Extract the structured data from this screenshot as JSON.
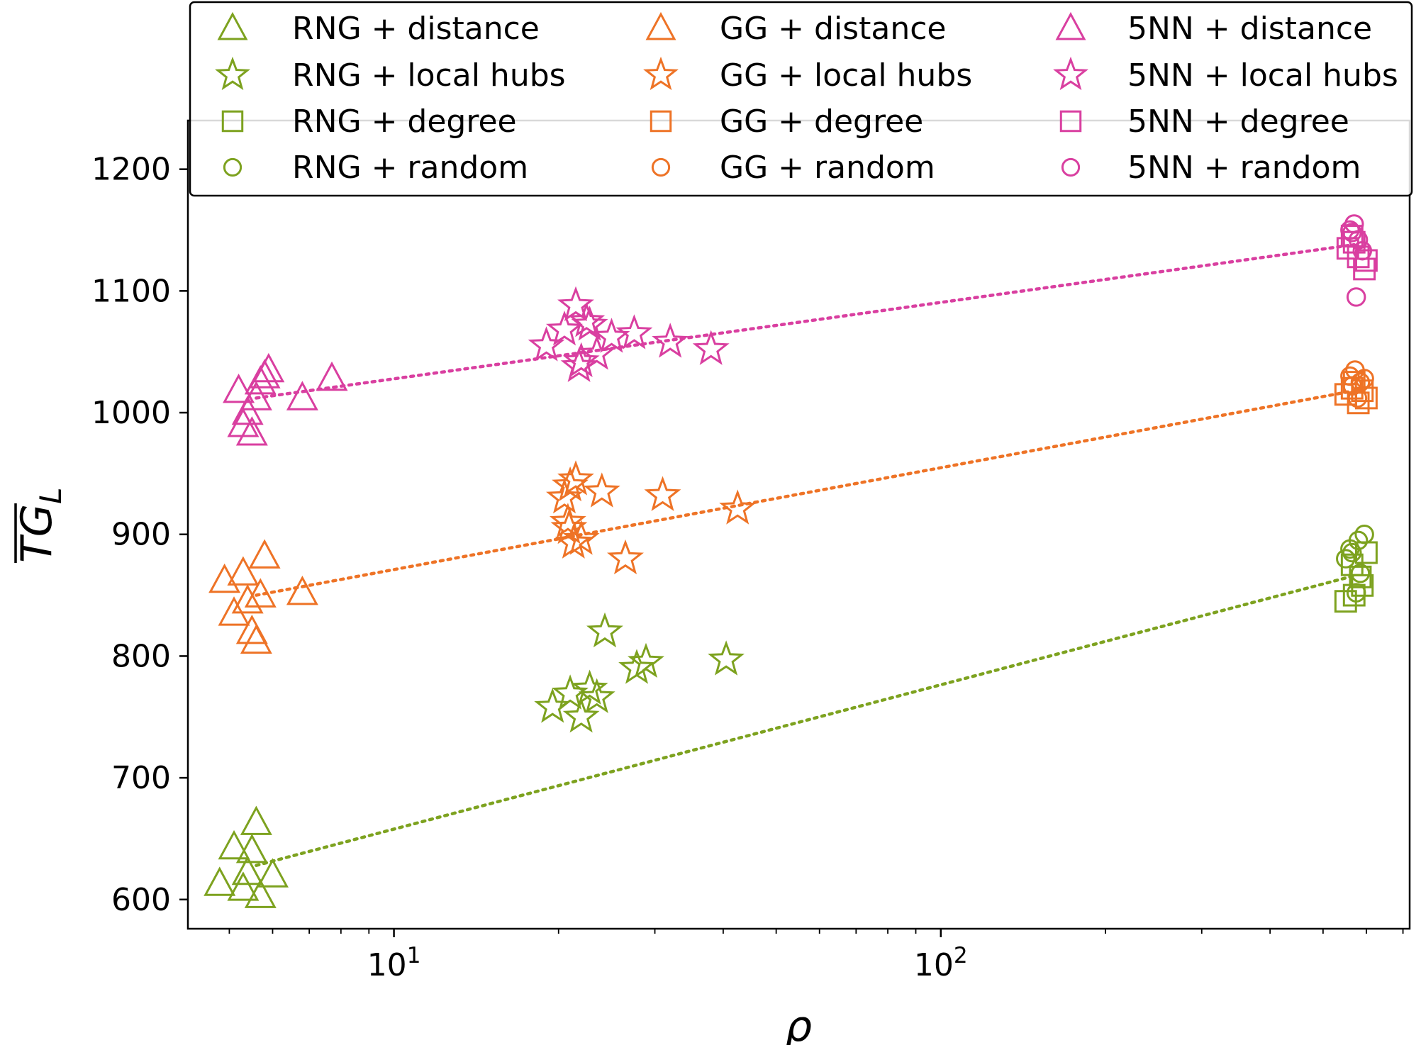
{
  "chart_data": {
    "type": "scatter",
    "title": "",
    "xlabel": "ρ",
    "ylabel_main": "TG",
    "ylabel_sub": "L",
    "xscale": "log",
    "xlim": [
      4.2,
      720
    ],
    "ylim": [
      576,
      1240
    ],
    "yticks": [
      600,
      700,
      800,
      900,
      1000,
      1100,
      1200
    ],
    "ytick_labels": [
      "600",
      "700",
      "800",
      "900",
      "1000",
      "1100",
      "1200"
    ],
    "xticks_major": [
      10,
      100
    ],
    "xtick_labels": [
      {
        "base": "10",
        "exp": "1"
      },
      {
        "base": "10",
        "exp": "2"
      }
    ],
    "grid": false,
    "legend_position": "top, spanning the plot width, three columns",
    "colors": {
      "RNG": "#7da21f",
      "GG": "#ee7326",
      "5NN": "#d93fa0"
    },
    "marker_legend": {
      "distance": "triangle",
      "local hubs": "star",
      "degree": "square",
      "random": "circle"
    },
    "legend": [
      [
        "RNG + distance",
        "RNG + local hubs",
        "RNG + degree",
        "RNG + random"
      ],
      [
        "GG + distance",
        "GG + local hubs",
        "GG + degree",
        "GG + random"
      ],
      [
        "5NN + distance",
        "5NN + local hubs",
        "5NN + degree",
        "5NN + random"
      ]
    ],
    "series": [
      {
        "name": "RNG + distance",
        "graph": "RNG",
        "marker": "triangle",
        "x": [
          4.8,
          5.1,
          5.3,
          5.6,
          5.5,
          5.7,
          6.0,
          5.4
        ],
        "y": [
          613,
          643,
          609,
          663,
          640,
          603,
          620,
          622
        ]
      },
      {
        "name": "RNG + local hubs",
        "graph": "RNG",
        "marker": "star",
        "x": [
          19.5,
          21.0,
          22.0,
          22.8,
          23.5,
          24.3,
          27.8,
          28.9,
          40.5
        ],
        "y": [
          758,
          769,
          750,
          773,
          766,
          820,
          790,
          795,
          797
        ]
      },
      {
        "name": "RNG + degree",
        "graph": "RNG",
        "marker": "square",
        "x": [
          550,
          570,
          585,
          600,
          565,
          590
        ],
        "y": [
          845,
          850,
          865,
          885,
          875,
          858
        ]
      },
      {
        "name": "RNG + random",
        "graph": "RNG",
        "marker": "circle",
        "x": [
          550,
          565,
          575,
          585,
          595,
          560,
          580
        ],
        "y": [
          880,
          885,
          852,
          868,
          900,
          888,
          895
        ]
      },
      {
        "name": "GG + distance",
        "graph": "GG",
        "marker": "triangle",
        "x": [
          4.9,
          5.1,
          5.3,
          5.5,
          5.7,
          5.8,
          5.4,
          5.6,
          6.8
        ],
        "y": [
          862,
          835,
          868,
          820,
          850,
          882,
          845,
          812,
          852
        ]
      },
      {
        "name": "GG + local hubs",
        "graph": "GG",
        "marker": "star",
        "x": [
          20.5,
          21.0,
          21.5,
          20.8,
          21.3,
          24.0,
          26.5,
          31.0,
          42.5,
          22.0,
          20.9
        ],
        "y": [
          930,
          940,
          945,
          910,
          893,
          935,
          880,
          932,
          921,
          896,
          905
        ]
      },
      {
        "name": "GG + degree",
        "graph": "GG",
        "marker": "square",
        "x": [
          550,
          565,
          580,
          600,
          570,
          590
        ],
        "y": [
          1015,
          1020,
          1008,
          1012,
          1025,
          1018
        ]
      },
      {
        "name": "GG + random",
        "graph": "GG",
        "marker": "circle",
        "x": [
          560,
          572,
          585,
          595,
          578,
          566
        ],
        "y": [
          1030,
          1035,
          1025,
          1028,
          1012,
          1022
        ]
      },
      {
        "name": "5NN + distance",
        "graph": "5NN",
        "marker": "triangle",
        "x": [
          5.2,
          5.4,
          5.6,
          5.8,
          5.9,
          5.5,
          5.7,
          6.8,
          7.7,
          5.3
        ],
        "y": [
          1018,
          1000,
          1012,
          1030,
          1035,
          983,
          1025,
          1012,
          1028,
          990
        ]
      },
      {
        "name": "5NN + local hubs",
        "graph": "5NN",
        "marker": "star",
        "x": [
          19.0,
          20.5,
          21.5,
          22.0,
          22.8,
          23.5,
          25.0,
          27.5,
          32.0,
          38.0,
          21.8,
          22.5
        ],
        "y": [
          1055,
          1068,
          1088,
          1042,
          1072,
          1048,
          1062,
          1065,
          1058,
          1052,
          1038,
          1075
        ]
      },
      {
        "name": "5NN + degree",
        "graph": "5NN",
        "marker": "square",
        "x": [
          555,
          565,
          580,
          595,
          600,
          570
        ],
        "y": [
          1135,
          1145,
          1128,
          1118,
          1125,
          1140
        ]
      },
      {
        "name": "5NN + random",
        "graph": "5NN",
        "marker": "circle",
        "x": [
          560,
          570,
          580,
          590,
          575,
          565
        ],
        "y": [
          1150,
          1155,
          1142,
          1133,
          1095,
          1148
        ]
      }
    ],
    "trend_lines": [
      {
        "graph": "RNG",
        "x": [
          5.6,
          570
        ],
        "y": [
          628,
          866
        ]
      },
      {
        "graph": "GG",
        "x": [
          5.6,
          570
        ],
        "y": [
          850,
          1018
        ]
      },
      {
        "graph": "5NN",
        "x": [
          5.6,
          570
        ],
        "y": [
          1012,
          1138
        ]
      }
    ]
  }
}
